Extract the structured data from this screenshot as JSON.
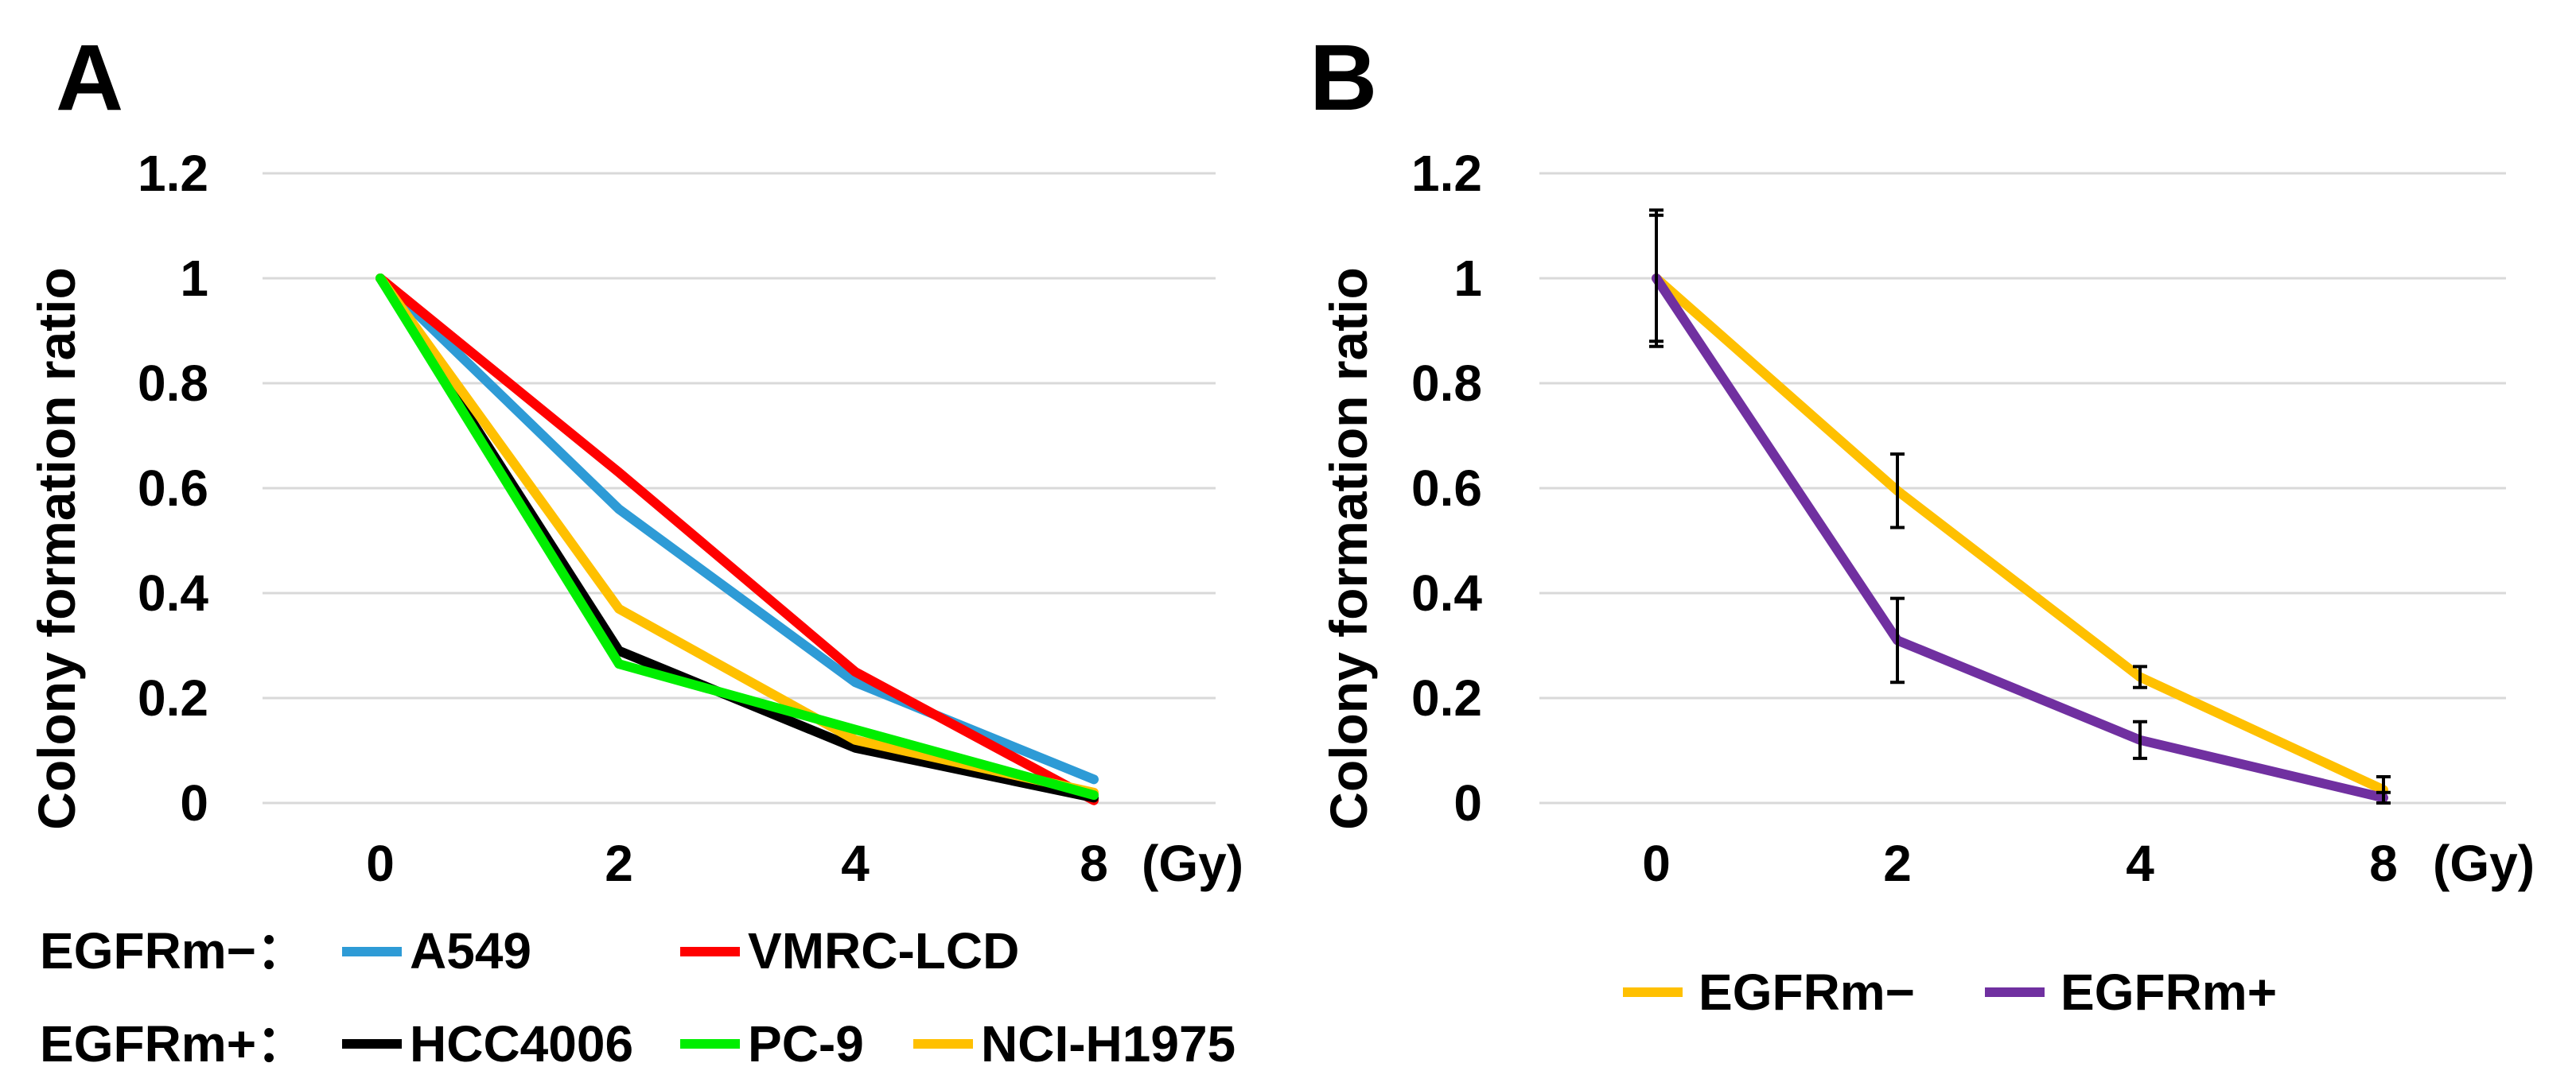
{
  "chart_data": [
    {
      "panel": "A",
      "type": "line",
      "categories": [
        "0",
        "2",
        "4",
        "8"
      ],
      "x_unit": "(Gy)",
      "ylabel": "Colony formation ratio",
      "ylim": [
        0,
        1.2
      ],
      "yticks": [
        "0",
        "0.2",
        "0.4",
        "0.6",
        "0.8",
        "1",
        "1.2"
      ],
      "grid": true,
      "series": [
        {
          "name": "A549",
          "group": "EGFRm−",
          "color": "#2e9bd6",
          "values": [
            1.0,
            0.56,
            0.23,
            0.045
          ]
        },
        {
          "name": "VMRC-LCD",
          "group": "EGFRm−",
          "color": "#ff0000",
          "values": [
            1.0,
            0.63,
            0.25,
            0.005
          ]
        },
        {
          "name": "HCC4006",
          "group": "EGFRm+",
          "color": "#000000",
          "values": [
            1.0,
            0.29,
            0.105,
            0.01
          ]
        },
        {
          "name": "NCI-H1975",
          "group": "EGFRm+",
          "color": "#ffc000",
          "values": [
            1.0,
            0.37,
            0.12,
            0.02
          ]
        },
        {
          "name": "PC-9",
          "group": "EGFRm+",
          "color": "#00ee00",
          "values": [
            1.0,
            0.265,
            0.14,
            0.015
          ]
        }
      ],
      "legend_rows": [
        {
          "label": "EGFRm−：",
          "series": [
            "A549",
            "VMRC-LCD"
          ]
        },
        {
          "label": "EGFRm+：",
          "series": [
            "HCC4006",
            "PC-9",
            "NCI-H1975"
          ]
        }
      ]
    },
    {
      "panel": "B",
      "type": "line",
      "categories": [
        "0",
        "2",
        "4",
        "8"
      ],
      "x_unit": "(Gy)",
      "ylabel": "Colony formation ratio",
      "ylim": [
        0,
        1.2
      ],
      "yticks": [
        "0",
        "0.2",
        "0.4",
        "0.6",
        "0.8",
        "1",
        "1.2"
      ],
      "grid": true,
      "series": [
        {
          "name": "EGFRm−",
          "color": "#ffc000",
          "values": [
            1.0,
            0.595,
            0.24,
            0.025
          ],
          "errors": [
            0.13,
            0.07,
            0.02,
            0.025
          ]
        },
        {
          "name": "EGFRm+",
          "color": "#7030a0",
          "values": [
            1.0,
            0.31,
            0.12,
            0.01
          ],
          "errors": [
            0.12,
            0.08,
            0.035,
            0.01
          ]
        }
      ]
    }
  ]
}
